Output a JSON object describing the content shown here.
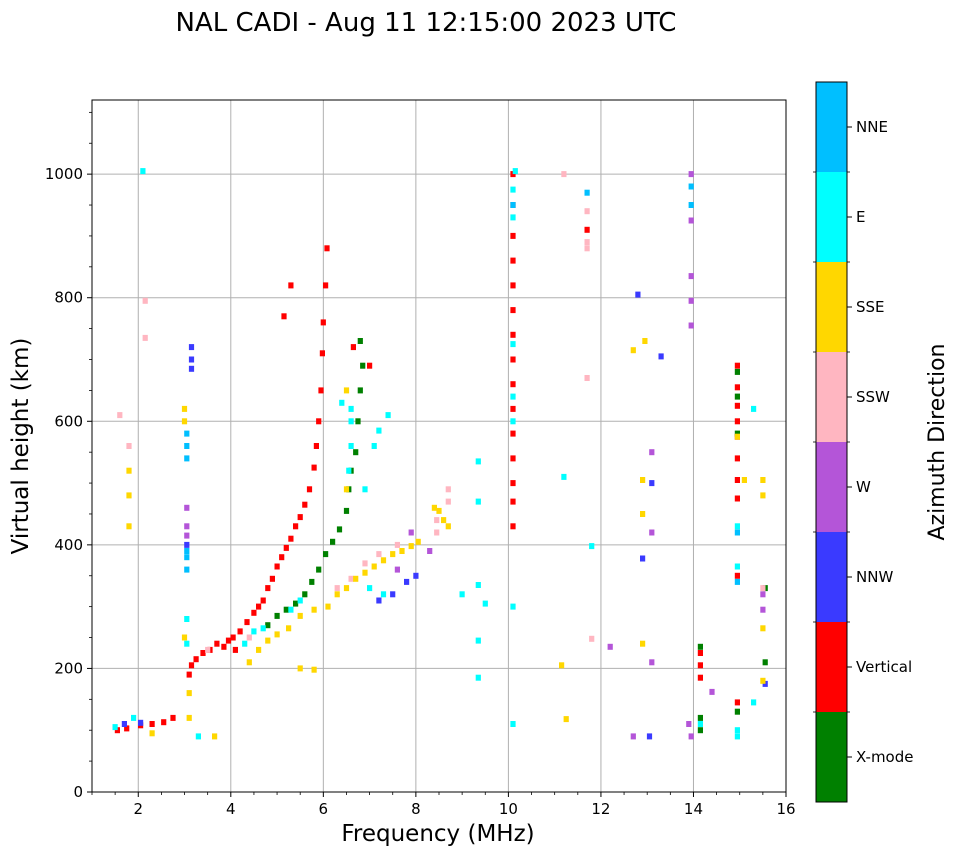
{
  "chart_data": {
    "type": "scatter",
    "title": "NAL CADI - Aug 11 12:15:00 2023 UTC",
    "xlabel": "Frequency (MHz)",
    "ylabel": "Virtual height (km)",
    "xlim": [
      1,
      16
    ],
    "ylim": [
      0,
      1120
    ],
    "xticks": [
      2,
      4,
      6,
      8,
      10,
      12,
      14,
      16
    ],
    "yticks": [
      0,
      200,
      400,
      600,
      800,
      1000
    ],
    "grid": true,
    "colorbar": {
      "label": "Azimuth Direction",
      "categories": [
        "X-mode",
        "Vertical",
        "NNW",
        "W",
        "SSW",
        "SSE",
        "E",
        "NNE"
      ],
      "colors": [
        "#008000",
        "#ff0000",
        "#3a3aff",
        "#b455d8",
        "#ffb6c1",
        "#ffd700",
        "#00ffff",
        "#00bfff"
      ]
    },
    "series": [
      {
        "name": "Vertical",
        "color": "#ff0000",
        "points": [
          [
            1.55,
            100
          ],
          [
            1.75,
            103
          ],
          [
            2.05,
            108
          ],
          [
            2.3,
            110
          ],
          [
            2.55,
            113
          ],
          [
            2.75,
            120
          ],
          [
            3.1,
            190
          ],
          [
            3.15,
            205
          ],
          [
            3.25,
            215
          ],
          [
            3.4,
            225
          ],
          [
            3.55,
            230
          ],
          [
            3.7,
            240
          ],
          [
            3.85,
            235
          ],
          [
            3.95,
            245
          ],
          [
            4.05,
            250
          ],
          [
            4.1,
            230
          ],
          [
            4.2,
            260
          ],
          [
            4.35,
            275
          ],
          [
            4.5,
            290
          ],
          [
            4.6,
            300
          ],
          [
            4.7,
            310
          ],
          [
            4.8,
            330
          ],
          [
            4.9,
            345
          ],
          [
            5.0,
            365
          ],
          [
            5.1,
            380
          ],
          [
            5.2,
            395
          ],
          [
            5.3,
            410
          ],
          [
            5.4,
            430
          ],
          [
            5.5,
            445
          ],
          [
            5.6,
            465
          ],
          [
            5.7,
            490
          ],
          [
            5.8,
            525
          ],
          [
            5.85,
            560
          ],
          [
            5.9,
            600
          ],
          [
            5.95,
            650
          ],
          [
            5.98,
            710
          ],
          [
            6.0,
            760
          ],
          [
            6.05,
            820
          ],
          [
            6.08,
            880
          ],
          [
            6.65,
            720
          ],
          [
            7.0,
            690
          ],
          [
            10.1,
            1000
          ],
          [
            10.1,
            950
          ],
          [
            10.1,
            900
          ],
          [
            10.1,
            860
          ],
          [
            10.1,
            820
          ],
          [
            10.1,
            780
          ],
          [
            10.1,
            740
          ],
          [
            10.1,
            700
          ],
          [
            10.1,
            660
          ],
          [
            10.1,
            620
          ],
          [
            10.1,
            580
          ],
          [
            10.1,
            540
          ],
          [
            10.1,
            500
          ],
          [
            10.1,
            470
          ],
          [
            10.1,
            430
          ],
          [
            11.7,
            910
          ],
          [
            14.15,
            225
          ],
          [
            14.15,
            205
          ],
          [
            14.15,
            185
          ],
          [
            14.95,
            690
          ],
          [
            14.95,
            655
          ],
          [
            14.95,
            625
          ],
          [
            14.95,
            600
          ],
          [
            14.95,
            575
          ],
          [
            14.95,
            540
          ],
          [
            14.95,
            505
          ],
          [
            14.95,
            475
          ],
          [
            14.95,
            350
          ],
          [
            14.95,
            145
          ],
          [
            5.3,
            820
          ],
          [
            5.15,
            770
          ]
        ]
      },
      {
        "name": "X-mode",
        "color": "#008000",
        "points": [
          [
            4.8,
            270
          ],
          [
            5.0,
            285
          ],
          [
            5.2,
            295
          ],
          [
            5.4,
            305
          ],
          [
            5.6,
            320
          ],
          [
            5.75,
            340
          ],
          [
            5.9,
            360
          ],
          [
            6.05,
            385
          ],
          [
            6.2,
            405
          ],
          [
            6.35,
            425
          ],
          [
            6.5,
            455
          ],
          [
            6.55,
            490
          ],
          [
            6.6,
            520
          ],
          [
            6.7,
            550
          ],
          [
            6.75,
            600
          ],
          [
            6.8,
            650
          ],
          [
            6.85,
            690
          ],
          [
            6.8,
            730
          ],
          [
            14.15,
            235
          ],
          [
            14.15,
            120
          ],
          [
            14.15,
            100
          ],
          [
            14.95,
            680
          ],
          [
            14.95,
            640
          ],
          [
            14.95,
            580
          ],
          [
            14.95,
            130
          ],
          [
            15.55,
            330
          ],
          [
            15.55,
            210
          ]
        ]
      },
      {
        "name": "NNW",
        "color": "#3a3aff",
        "points": [
          [
            1.7,
            110
          ],
          [
            2.05,
            112
          ],
          [
            3.15,
            720
          ],
          [
            3.15,
            700
          ],
          [
            3.15,
            685
          ],
          [
            3.05,
            400
          ],
          [
            7.2,
            310
          ],
          [
            7.5,
            320
          ],
          [
            7.8,
            340
          ],
          [
            8.0,
            350
          ],
          [
            12.8,
            805
          ],
          [
            13.3,
            705
          ],
          [
            12.9,
            378
          ],
          [
            13.1,
            500
          ],
          [
            13.05,
            90
          ],
          [
            15.55,
            175
          ]
        ]
      },
      {
        "name": "W",
        "color": "#b455d8",
        "points": [
          [
            3.05,
            460
          ],
          [
            3.05,
            430
          ],
          [
            3.05,
            415
          ],
          [
            7.6,
            360
          ],
          [
            7.9,
            420
          ],
          [
            8.3,
            390
          ],
          [
            13.95,
            1000
          ],
          [
            13.95,
            925
          ],
          [
            13.95,
            835
          ],
          [
            13.95,
            795
          ],
          [
            13.95,
            755
          ],
          [
            13.9,
            110
          ],
          [
            13.95,
            90
          ],
          [
            13.1,
            550
          ],
          [
            13.1,
            420
          ],
          [
            13.1,
            210
          ],
          [
            15.5,
            295
          ],
          [
            15.5,
            320
          ],
          [
            12.2,
            235
          ],
          [
            14.4,
            162
          ],
          [
            12.7,
            90
          ]
        ]
      },
      {
        "name": "SSW",
        "color": "#ffb6c1",
        "points": [
          [
            1.6,
            610
          ],
          [
            1.8,
            560
          ],
          [
            2.15,
            795
          ],
          [
            2.15,
            735
          ],
          [
            3.5,
            230
          ],
          [
            4.4,
            250
          ],
          [
            6.3,
            330
          ],
          [
            6.6,
            345
          ],
          [
            6.9,
            370
          ],
          [
            7.2,
            385
          ],
          [
            7.6,
            400
          ],
          [
            8.45,
            440
          ],
          [
            8.45,
            420
          ],
          [
            8.7,
            470
          ],
          [
            8.7,
            490
          ],
          [
            11.2,
            1000
          ],
          [
            11.7,
            940
          ],
          [
            11.7,
            890
          ],
          [
            11.7,
            880
          ],
          [
            11.7,
            670
          ],
          [
            11.8,
            248
          ],
          [
            15.5,
            330
          ]
        ]
      },
      {
        "name": "SSE",
        "color": "#ffd700",
        "points": [
          [
            1.8,
            520
          ],
          [
            1.8,
            480
          ],
          [
            1.8,
            430
          ],
          [
            3.0,
            620
          ],
          [
            3.0,
            600
          ],
          [
            3.0,
            250
          ],
          [
            3.1,
            160
          ],
          [
            3.1,
            120
          ],
          [
            2.3,
            95
          ],
          [
            3.65,
            90
          ],
          [
            4.4,
            210
          ],
          [
            4.6,
            230
          ],
          [
            4.8,
            245
          ],
          [
            5.0,
            255
          ],
          [
            5.25,
            265
          ],
          [
            5.5,
            285
          ],
          [
            5.8,
            295
          ],
          [
            5.5,
            200
          ],
          [
            5.8,
            198
          ],
          [
            6.1,
            300
          ],
          [
            6.3,
            320
          ],
          [
            6.5,
            330
          ],
          [
            6.7,
            345
          ],
          [
            6.9,
            355
          ],
          [
            7.1,
            365
          ],
          [
            7.3,
            375
          ],
          [
            7.5,
            385
          ],
          [
            7.7,
            390
          ],
          [
            7.9,
            398
          ],
          [
            8.05,
            405
          ],
          [
            6.5,
            490
          ],
          [
            6.5,
            650
          ],
          [
            8.4,
            460
          ],
          [
            8.5,
            455
          ],
          [
            8.6,
            440
          ],
          [
            8.7,
            430
          ],
          [
            12.7,
            715
          ],
          [
            12.95,
            730
          ],
          [
            12.9,
            505
          ],
          [
            12.9,
            450
          ],
          [
            12.9,
            240
          ],
          [
            11.15,
            205
          ],
          [
            11.25,
            118
          ],
          [
            15.1,
            505
          ],
          [
            15.5,
            505
          ],
          [
            15.5,
            480
          ],
          [
            15.5,
            265
          ],
          [
            15.5,
            180
          ],
          [
            14.95,
            575
          ]
        ]
      },
      {
        "name": "E",
        "color": "#00ffff",
        "points": [
          [
            1.5,
            105
          ],
          [
            1.9,
            120
          ],
          [
            2.1,
            1005
          ],
          [
            3.05,
            280
          ],
          [
            3.05,
            240
          ],
          [
            3.3,
            90
          ],
          [
            4.3,
            240
          ],
          [
            4.5,
            260
          ],
          [
            4.7,
            265
          ],
          [
            5.3,
            295
          ],
          [
            5.5,
            310
          ],
          [
            6.4,
            630
          ],
          [
            6.6,
            620
          ],
          [
            6.6,
            600
          ],
          [
            6.6,
            560
          ],
          [
            6.55,
            520
          ],
          [
            6.9,
            490
          ],
          [
            7.1,
            560
          ],
          [
            7.2,
            585
          ],
          [
            7.4,
            610
          ],
          [
            7.0,
            330
          ],
          [
            7.3,
            320
          ],
          [
            9.0,
            320
          ],
          [
            9.35,
            335
          ],
          [
            9.35,
            470
          ],
          [
            9.35,
            535
          ],
          [
            9.35,
            245
          ],
          [
            9.35,
            185
          ],
          [
            9.5,
            305
          ],
          [
            10.1,
            300
          ],
          [
            10.1,
            110
          ],
          [
            10.15,
            1005
          ],
          [
            10.1,
            975
          ],
          [
            10.1,
            930
          ],
          [
            10.1,
            725
          ],
          [
            10.1,
            640
          ],
          [
            10.1,
            600
          ],
          [
            11.2,
            510
          ],
          [
            11.8,
            398
          ],
          [
            14.15,
            110
          ],
          [
            14.95,
            430
          ],
          [
            14.95,
            365
          ],
          [
            14.95,
            100
          ],
          [
            14.95,
            90
          ],
          [
            15.3,
            620
          ],
          [
            15.3,
            145
          ]
        ]
      },
      {
        "name": "NNE",
        "color": "#00bfff",
        "points": [
          [
            3.05,
            580
          ],
          [
            3.05,
            560
          ],
          [
            3.05,
            540
          ],
          [
            3.05,
            390
          ],
          [
            3.05,
            380
          ],
          [
            3.05,
            360
          ],
          [
            11.7,
            970
          ],
          [
            13.95,
            980
          ],
          [
            13.95,
            950
          ],
          [
            14.95,
            340
          ],
          [
            14.95,
            420
          ],
          [
            10.1,
            950
          ]
        ]
      }
    ]
  }
}
